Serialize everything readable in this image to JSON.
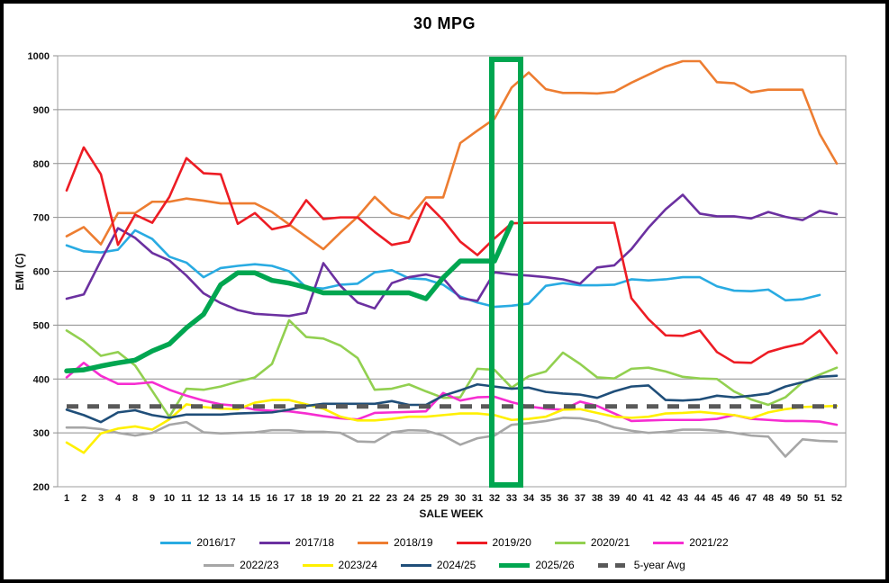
{
  "chart": {
    "title": "30 MPG"
  },
  "chart_data": {
    "type": "line",
    "title": "30 MPG",
    "xlabel": "SALE WEEK",
    "ylabel": "EMI (C)",
    "ylim": [
      200,
      1000
    ],
    "y_ticks": [
      200,
      300,
      400,
      500,
      600,
      700,
      800,
      900,
      1000
    ],
    "grid": true,
    "legend_position": "bottom",
    "categories": [
      "1",
      "2",
      "3",
      "4",
      "8",
      "9",
      "10",
      "11",
      "12",
      "13",
      "14",
      "15",
      "16",
      "17",
      "18",
      "19",
      "20",
      "21",
      "22",
      "23",
      "24",
      "25",
      "29",
      "30",
      "31",
      "32",
      "33",
      "34",
      "35",
      "36",
      "37",
      "38",
      "39",
      "40",
      "41",
      "42",
      "43",
      "44",
      "45",
      "46",
      "47",
      "48",
      "49",
      "50",
      "51",
      "52"
    ],
    "series": [
      {
        "name": "2016/17",
        "color": "#29ABE2",
        "width": 2.6,
        "values": [
          648,
          637,
          635,
          640,
          676,
          660,
          627,
          616,
          589,
          606,
          610,
          613,
          610,
          600,
          570,
          568,
          575,
          577,
          598,
          602,
          587,
          585,
          575,
          553,
          542,
          534,
          536,
          540,
          573,
          578,
          574,
          574,
          575,
          585,
          583,
          585,
          589,
          589,
          572,
          564,
          563,
          566,
          546,
          548,
          556,
          null
        ]
      },
      {
        "name": "2017/18",
        "color": "#6B30A0",
        "width": 2.6,
        "values": [
          549,
          557,
          620,
          680,
          662,
          634,
          620,
          592,
          559,
          541,
          528,
          521,
          519,
          517,
          523,
          615,
          573,
          542,
          531,
          578,
          589,
          594,
          587,
          550,
          545,
          598,
          594,
          592,
          589,
          585,
          577,
          607,
          611,
          641,
          681,
          715,
          742,
          707,
          702,
          702,
          698,
          710,
          701,
          695,
          712,
          706
        ]
      },
      {
        "name": "2018/19",
        "color": "#ED7D31",
        "width": 2.6,
        "values": [
          665,
          682,
          650,
          708,
          708,
          729,
          729,
          735,
          731,
          726,
          726,
          726,
          710,
          687,
          664,
          641,
          672,
          701,
          738,
          708,
          698,
          737,
          737,
          838,
          861,
          883,
          941,
          969,
          938,
          931,
          931,
          930,
          933,
          950,
          965,
          980,
          990,
          990,
          951,
          949,
          932,
          937,
          937,
          937,
          855,
          800
        ]
      },
      {
        "name": "2019/20",
        "color": "#ED1C24",
        "width": 2.6,
        "values": [
          750,
          830,
          780,
          649,
          705,
          690,
          738,
          810,
          782,
          780,
          688,
          708,
          678,
          685,
          732,
          697,
          700,
          700,
          673,
          649,
          655,
          727,
          695,
          655,
          630,
          661,
          689,
          690,
          690,
          690,
          690,
          690,
          690,
          550,
          511,
          481,
          480,
          490,
          450,
          431,
          430,
          450,
          459,
          466,
          490,
          448
        ]
      },
      {
        "name": "2020/21",
        "color": "#92D050",
        "width": 2.6,
        "values": [
          490,
          470,
          443,
          450,
          425,
          378,
          330,
          382,
          380,
          386,
          395,
          403,
          428,
          509,
          478,
          475,
          462,
          439,
          380,
          382,
          390,
          377,
          365,
          366,
          419,
          417,
          384,
          405,
          414,
          449,
          428,
          403,
          401,
          419,
          421,
          414,
          404,
          401,
          400,
          377,
          362,
          352,
          366,
          394,
          408,
          421
        ]
      },
      {
        "name": "2021/22",
        "color": "#F62DD1",
        "width": 2.6,
        "values": [
          403,
          430,
          406,
          391,
          391,
          394,
          380,
          369,
          360,
          353,
          350,
          343,
          341,
          340,
          336,
          331,
          327,
          325,
          337,
          338,
          339,
          340,
          374,
          360,
          366,
          367,
          357,
          349,
          345,
          343,
          358,
          350,
          336,
          322,
          323,
          324,
          324,
          324,
          326,
          333,
          326,
          324,
          322,
          322,
          321,
          315
        ]
      },
      {
        "name": "2022/23",
        "color": "#A6A6A6",
        "width": 2.6,
        "values": [
          310,
          310,
          307,
          300,
          295,
          300,
          315,
          320,
          301,
          299,
          300,
          301,
          305,
          305,
          302,
          302,
          300,
          284,
          283,
          301,
          305,
          304,
          295,
          278,
          290,
          295,
          315,
          318,
          322,
          328,
          327,
          321,
          310,
          304,
          300,
          302,
          306,
          306,
          304,
          300,
          295,
          293,
          256,
          288,
          285,
          284
        ]
      },
      {
        "name": "2023/24",
        "color": "#FFF000",
        "width": 2.6,
        "values": [
          282,
          263,
          299,
          308,
          312,
          306,
          325,
          353,
          348,
          345,
          344,
          356,
          361,
          361,
          353,
          345,
          330,
          323,
          323,
          326,
          330,
          330,
          333,
          336,
          336,
          333,
          324,
          326,
          330,
          343,
          344,
          337,
          330,
          328,
          330,
          336,
          337,
          339,
          336,
          333,
          327,
          338,
          344,
          348,
          349,
          350
        ]
      },
      {
        "name": "2024/25",
        "color": "#1F4E79",
        "width": 2.6,
        "values": [
          343,
          333,
          320,
          338,
          342,
          333,
          328,
          334,
          334,
          334,
          336,
          337,
          338,
          343,
          350,
          354,
          354,
          354,
          354,
          359,
          352,
          352,
          369,
          379,
          390,
          386,
          382,
          384,
          376,
          373,
          371,
          365,
          377,
          386,
          388,
          361,
          360,
          362,
          369,
          366,
          369,
          373,
          386,
          394,
          404,
          406
        ]
      },
      {
        "name": "2025/26",
        "color": "#00A650",
        "width": 5.5,
        "values": [
          415,
          417,
          424,
          430,
          435,
          452,
          465,
          495,
          520,
          575,
          597,
          597,
          583,
          578,
          570,
          560,
          560,
          560,
          560,
          560,
          560,
          549,
          588,
          619,
          619,
          619,
          690,
          null,
          null,
          null,
          null,
          null,
          null,
          null,
          null,
          null,
          null,
          null,
          null,
          null,
          null,
          null,
          null,
          null,
          null,
          null
        ]
      },
      {
        "name": "5-year Avg",
        "color": "#595959",
        "width": 5,
        "dash": "13 10",
        "values": [
          349,
          349,
          349,
          349,
          349,
          349,
          349,
          349,
          349,
          349,
          349,
          349,
          349,
          349,
          349,
          349,
          349,
          349,
          349,
          349,
          349,
          349,
          349,
          349,
          349,
          349,
          349,
          349,
          349,
          349,
          349,
          349,
          349,
          349,
          349,
          349,
          349,
          349,
          349,
          349,
          349,
          349,
          349,
          349,
          349,
          349
        ]
      }
    ],
    "highlight_box": {
      "from_week": "32",
      "to_week": "33",
      "y_bottom_value": 200,
      "y_top_value": 1000,
      "color": "#00A650",
      "stroke_width": 6
    }
  }
}
